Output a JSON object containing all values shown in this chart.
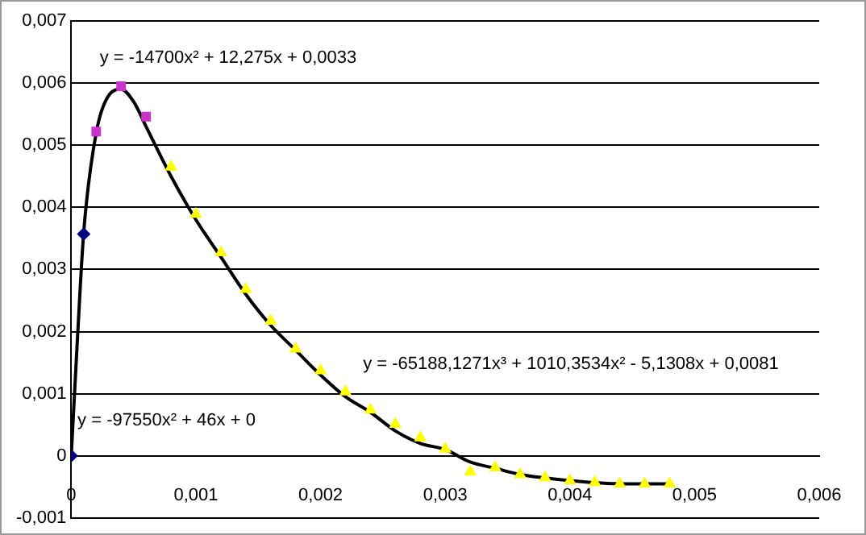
{
  "chart_data": {
    "type": "scatter",
    "xlim": [
      0,
      0.006
    ],
    "xticks": [
      0,
      {
        "value": 0.001,
        "label": "0,001"
      },
      {
        "value": 0.002,
        "label": "0,002"
      },
      {
        "value": 0.003,
        "label": "0,003"
      },
      {
        "value": 0.004,
        "label": "0,004"
      },
      {
        "value": 0.005,
        "label": "0,005"
      },
      {
        "value": 0.006,
        "label": "0,006"
      }
    ],
    "ylim": [
      -0.001,
      0.007
    ],
    "yticks": [
      {
        "value": -0.001,
        "label": "-0,001"
      },
      0,
      {
        "value": 0.001,
        "label": "0,001"
      },
      {
        "value": 0.002,
        "label": "0,002"
      },
      {
        "value": 0.003,
        "label": "0,003"
      },
      {
        "value": 0.004,
        "label": "0,004"
      },
      {
        "value": 0.005,
        "label": "0,005"
      },
      {
        "value": 0.006,
        "label": "0,006"
      },
      {
        "value": 0.007,
        "label": "0,007"
      }
    ],
    "grid": "y",
    "legend": false,
    "series": [
      {
        "marker": "diamond",
        "color": "#000080",
        "x": [
          0,
          0.0001
        ],
        "values": [
          0,
          0.00357
        ]
      },
      {
        "marker": "square",
        "color": "#cc33cc",
        "x": [
          0.0002,
          0.0004,
          0.0006
        ],
        "values": [
          0.00522,
          0.00595,
          0.00546
        ]
      },
      {
        "marker": "triangle",
        "color": "#ffff00",
        "x": [
          0.0008,
          0.001,
          0.0012,
          0.0014,
          0.0016,
          0.0018,
          0.002,
          0.0022,
          0.0024,
          0.0026,
          0.0028,
          0.003,
          0.0032,
          0.0034,
          0.0036,
          0.0038,
          0.004,
          0.0042,
          0.0044,
          0.0046,
          0.0048
        ],
        "values": [
          0.00465,
          0.00389,
          0.00327,
          0.00268,
          0.00217,
          0.00172,
          0.00137,
          0.00103,
          0.00074,
          0.00051,
          0.00029,
          0.00011,
          -0.00026,
          -0.00019,
          -0.0003,
          -0.00035,
          -0.0004,
          -0.00043,
          -0.00045,
          -0.00045,
          -0.00045
        ]
      },
      {
        "type": "line",
        "marker": "none",
        "color": "#000000",
        "x": [
          0,
          5e-05,
          0.0001,
          0.0002,
          0.0003,
          0.0004,
          0.0005,
          0.0006,
          0.0008,
          0.001,
          0.0012,
          0.0014,
          0.0016,
          0.0018,
          0.002,
          0.0022,
          0.0024,
          0.0026,
          0.0028,
          0.003,
          0.0032,
          0.0034,
          0.0036,
          0.004,
          0.0044,
          0.0048
        ],
        "values": [
          0,
          0.0019,
          0.0036,
          0.0052,
          0.0058,
          0.0059,
          0.0057,
          0.0053,
          0.0045,
          0.0038,
          0.0032,
          0.0026,
          0.0021,
          0.0017,
          0.0013,
          0.00095,
          0.0007,
          0.0004,
          0.0002,
          0.0001,
          -0.0001,
          -0.0002,
          -0.0003,
          -0.0004,
          -0.00045,
          -0.00045
        ]
      }
    ],
    "annotations": [
      "y = -14700x² + 12,275x + 0,0033",
      {
        "text": "y = -97550x² + 46x + 0",
        "x": 5e-05,
        "y": 0.00057
      },
      "y = -65188,1271x³ + 1010,3534x² - 5,1308x + 0,0081"
    ]
  }
}
